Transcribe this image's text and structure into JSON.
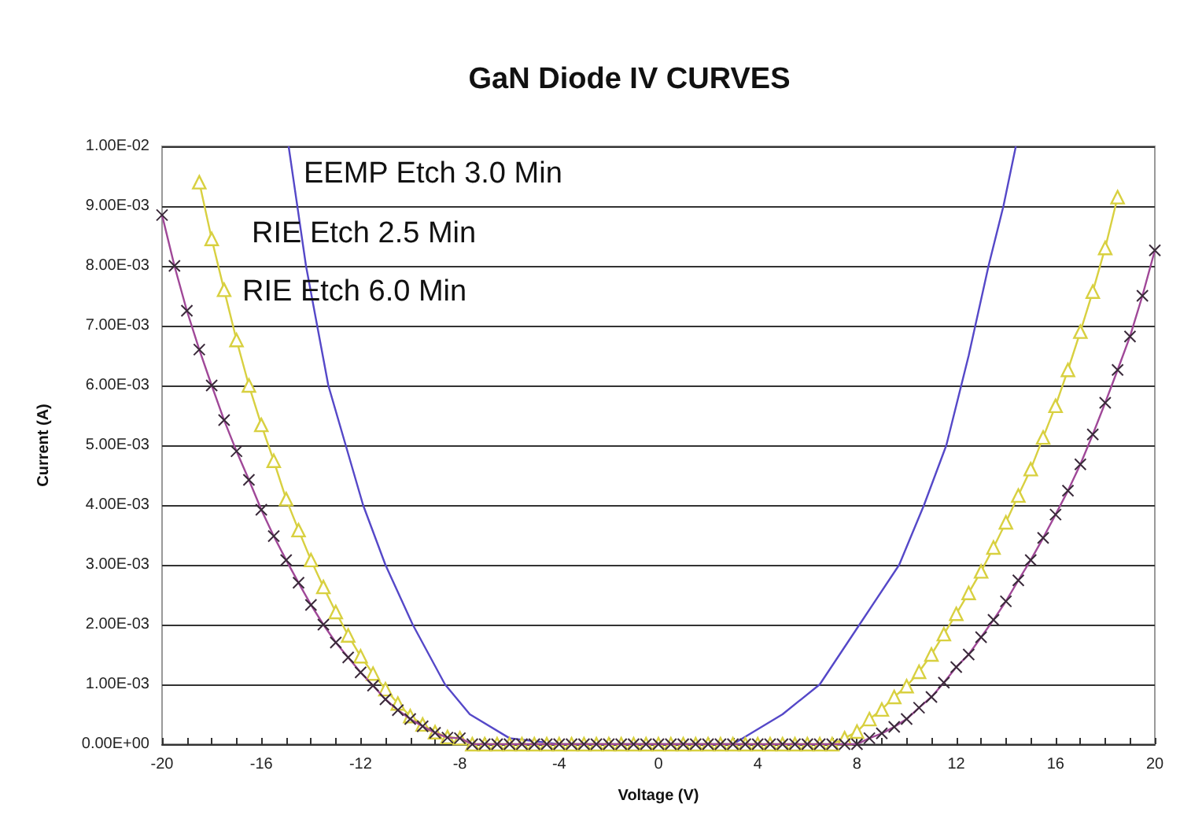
{
  "chart_data": {
    "type": "line",
    "title": "GaN Diode IV CURVES",
    "xlabel": "Voltage (V)",
    "ylabel": "Current (A)",
    "annotations": [
      "EEMP Etch 3.0 Min",
      "RIE Etch 2.5 Min",
      "RIE Etch 6.0 Min"
    ],
    "xlim": [
      -20,
      20
    ],
    "xticks": [
      -20,
      {
        "value": -19,
        "label": null
      },
      {
        "value": -18,
        "label": null
      },
      {
        "value": -17,
        "label": null
      },
      -16,
      {
        "value": -15,
        "label": null
      },
      {
        "value": -14,
        "label": null
      },
      {
        "value": -13,
        "label": null
      },
      -12,
      {
        "value": -11,
        "label": null
      },
      {
        "value": -10,
        "label": null
      },
      {
        "value": -9,
        "label": null
      },
      -8,
      {
        "value": -7,
        "label": null
      },
      {
        "value": -6,
        "label": null
      },
      {
        "value": -5,
        "label": null
      },
      -4,
      {
        "value": -3,
        "label": null
      },
      {
        "value": -2,
        "label": null
      },
      {
        "value": -1,
        "label": null
      },
      0,
      {
        "value": 1,
        "label": null
      },
      {
        "value": 2,
        "label": null
      },
      {
        "value": 3,
        "label": null
      },
      4,
      {
        "value": 5,
        "label": null
      },
      {
        "value": 6,
        "label": null
      },
      {
        "value": 7,
        "label": null
      },
      8,
      {
        "value": 9,
        "label": null
      },
      {
        "value": 10,
        "label": null
      },
      {
        "value": 11,
        "label": null
      },
      12,
      {
        "value": 13,
        "label": null
      },
      {
        "value": 14,
        "label": null
      },
      {
        "value": 15,
        "label": null
      },
      16,
      {
        "value": 17,
        "label": null
      },
      {
        "value": 18,
        "label": null
      },
      {
        "value": 19,
        "label": null
      },
      20
    ],
    "ylim": [
      0,
      0.01
    ],
    "yticks": [
      {
        "value": 0,
        "label": "0.00E+00"
      },
      {
        "value": 0.001,
        "label": "1.00E-03"
      },
      {
        "value": 0.002,
        "label": "2.00E-03"
      },
      {
        "value": 0.003,
        "label": "3.00E-03"
      },
      {
        "value": 0.004,
        "label": "4.00E-03"
      },
      {
        "value": 0.005,
        "label": "5.00E-03"
      },
      {
        "value": 0.006,
        "label": "6.00E-03"
      },
      {
        "value": 0.007,
        "label": "7.00E-03"
      },
      {
        "value": 0.008,
        "label": "8.00E-03"
      },
      {
        "value": 0.009,
        "label": "9.00E-03"
      },
      {
        "value": 0.01,
        "label": "1.00E-02"
      }
    ],
    "grid": "y",
    "series": [
      {
        "marker": "none",
        "color": "#5548c8",
        "x": [
          -14.9,
          -14.2,
          -13.3,
          -12.6,
          -11.9,
          -11,
          -9.9,
          -8.6,
          -7.6,
          -6,
          -4,
          0,
          3,
          5,
          6.5,
          8.1,
          9.7,
          10.7,
          11.6,
          12.5,
          13.3,
          13.9,
          14.4
        ],
        "values": [
          0.01,
          0.008,
          0.006,
          0.005,
          0.004,
          0.003,
          0.002,
          0.001,
          0.0005,
          0.0001,
          0,
          0,
          0,
          0.0005,
          0.001,
          0.002,
          0.003,
          0.004,
          0.005,
          0.0065,
          0.008,
          0.009,
          0.01
        ]
      },
      {
        "marker": "triangle",
        "color": "#d8d040",
        "x": [
          -18.5,
          -18,
          -17.5,
          -17,
          -16.5,
          -16,
          -15.5,
          -15,
          -14.5,
          -14,
          -13.5,
          -13,
          -12.5,
          -12,
          -11.5,
          -11,
          -10.5,
          -10,
          -9.5,
          -9,
          -8.5,
          -8,
          -7.5,
          -7,
          -6.5,
          -6,
          -5.5,
          -5,
          -4.5,
          -4,
          -3.5,
          -3,
          -2.5,
          -2,
          -1.5,
          -1,
          -0.5,
          0,
          0.5,
          1,
          1.5,
          2,
          2.5,
          3,
          3.5,
          4,
          4.5,
          5,
          5.5,
          6,
          6.5,
          7,
          7.5,
          8,
          8.5,
          9,
          9.5,
          10,
          10.5,
          11,
          11.5,
          12,
          12.5,
          13,
          13.5,
          14,
          14.5,
          15,
          15.5,
          16,
          16.5,
          17,
          17.5,
          18,
          18.5
        ],
        "values": [
          0.0094,
          0.00845,
          0.0076,
          0.00676,
          0.006,
          0.00534,
          0.00474,
          0.0041,
          0.00358,
          0.00308,
          0.00263,
          0.00221,
          0.00182,
          0.00147,
          0.00118,
          0.00092,
          0.00068,
          0.00047,
          0.00033,
          0.0002,
          0.00012,
          0.0001,
          0,
          0,
          0,
          0,
          0,
          0,
          0,
          0,
          0,
          0,
          0,
          0,
          0,
          0,
          0,
          0,
          0,
          0,
          0,
          0,
          0,
          0,
          0,
          0,
          0,
          0,
          0,
          0,
          0,
          0,
          0.0001,
          0.00021,
          0.00042,
          0.00058,
          0.00079,
          0.00097,
          0.00121,
          0.0015,
          0.00184,
          0.00218,
          0.00253,
          0.00289,
          0.00329,
          0.00371,
          0.00416,
          0.0046,
          0.00513,
          0.00566,
          0.00626,
          0.0069,
          0.00757,
          0.0083,
          0.00915
        ]
      },
      {
        "marker": "cross",
        "color": "#a04898",
        "x": [
          -20,
          -19.5,
          -19,
          -18.5,
          -18,
          -17.5,
          -17,
          -16.5,
          -16,
          -15.5,
          -15,
          -14.5,
          -14,
          -13.5,
          -13,
          -12.5,
          -12,
          -11.5,
          -11,
          -10.5,
          -10,
          -9.5,
          -9,
          -8.5,
          -8,
          -7.5,
          -7,
          -6.5,
          -6,
          -5.5,
          -5,
          -4.5,
          -4,
          -3.5,
          -3,
          -2.5,
          -2,
          -1.5,
          -1,
          -0.5,
          0,
          0.5,
          1,
          1.5,
          2,
          2.5,
          3,
          3.5,
          4,
          4.5,
          5,
          5.5,
          6,
          6.5,
          7,
          7.5,
          8,
          8.5,
          9,
          9.5,
          10,
          10.5,
          11,
          11.5,
          12,
          12.5,
          13,
          13.5,
          14,
          14.5,
          15,
          15.5,
          16,
          16.5,
          17,
          17.5,
          18,
          18.5,
          19,
          19.5,
          20
        ],
        "values": [
          0.00885,
          0.008,
          0.00725,
          0.0066,
          0.006,
          0.00542,
          0.0049,
          0.00442,
          0.00392,
          0.00348,
          0.00308,
          0.0027,
          0.00233,
          0.002,
          0.0017,
          0.00145,
          0.0012,
          0.00098,
          0.00075,
          0.00057,
          0.00042,
          0.0003,
          0.00019,
          0.00011,
          0.0001,
          0,
          0,
          0,
          0,
          0,
          0,
          0,
          0,
          0,
          0,
          0,
          0,
          0,
          0,
          0,
          0,
          0,
          0,
          0,
          0,
          0,
          0,
          0,
          0,
          0,
          0,
          0,
          0,
          0,
          0,
          0,
          0,
          0.0001,
          0.00018,
          0.00029,
          0.00042,
          0.00061,
          0.00079,
          0.00103,
          0.00129,
          0.0015,
          0.00179,
          0.00208,
          0.00239,
          0.00274,
          0.00308,
          0.00345,
          0.00384,
          0.00424,
          0.00468,
          0.00518,
          0.00571,
          0.00626,
          0.00682,
          0.0075,
          0.00826
        ]
      }
    ]
  }
}
